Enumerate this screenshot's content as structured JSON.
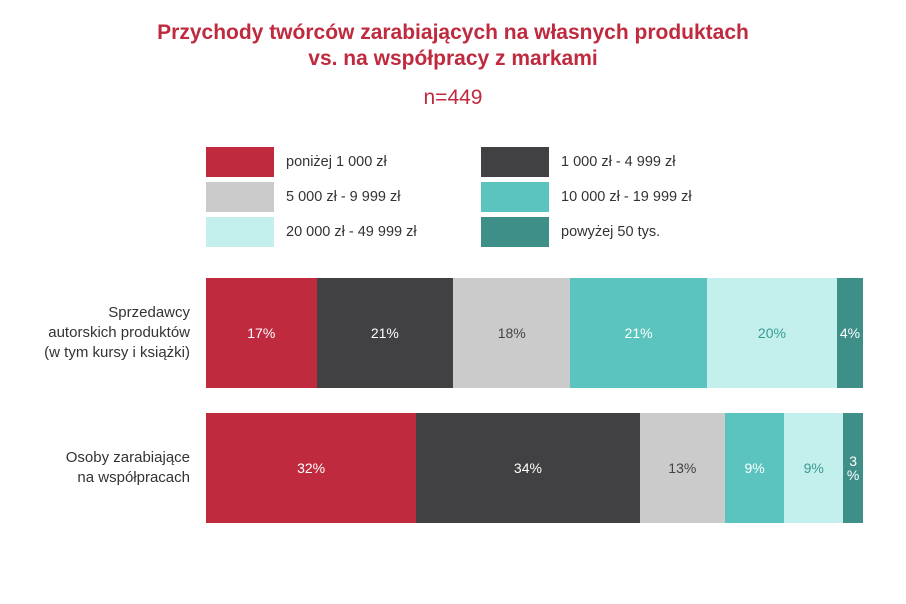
{
  "chart_data": {
    "type": "bar",
    "orientation": "horizontal",
    "stacked": true,
    "percent_stacked": true,
    "title_line1": "Przychody twórców zarabiających na własnych produktach",
    "title_line2": "vs. na współpracy z markami",
    "subtitle": "n=449",
    "legend_position": "top",
    "grid": false,
    "categories": [
      "Sprzedawcy autorskich produktów (w tym kursy i książki)",
      "Osoby zarabiające na współpracach"
    ],
    "category_lines": [
      [
        "Sprzedawcy",
        "autorskich produktów",
        "(w tym kursy i książki)"
      ],
      [
        "Osoby zarabiające",
        "na współpracach"
      ]
    ],
    "series": [
      {
        "name": "poniżej 1 000 zł",
        "color": "#bf2a3e",
        "text_color": "#ffffff",
        "values": [
          17,
          32
        ],
        "labels": [
          "17%",
          "32%"
        ]
      },
      {
        "name": "1 000 zł - 4 999 zł",
        "color": "#414042",
        "text_color": "#ffffff",
        "values": [
          21,
          34
        ],
        "labels": [
          "21%",
          "34%"
        ]
      },
      {
        "name": "5 000 zł - 9 999 zł",
        "color": "#cbcbcb",
        "text_color": "#444444",
        "values": [
          18,
          13
        ],
        "labels": [
          "18%",
          "13%"
        ]
      },
      {
        "name": "10 000 zł - 19 999 zł",
        "color": "#5bc4be",
        "text_color": "#ffffff",
        "values": [
          21,
          9
        ],
        "labels": [
          "21%",
          "9%"
        ]
      },
      {
        "name": "20 000 zł - 49 999 zł",
        "color": "#c3f0ec",
        "text_color": "#3a9a92",
        "values": [
          20,
          9
        ],
        "labels": [
          "20%",
          "9%"
        ]
      },
      {
        "name": "powyżej 50 tys.",
        "color": "#3e8f88",
        "text_color": "#ffffff",
        "values": [
          4,
          3
        ],
        "labels": [
          "4%",
          "3\n%"
        ]
      }
    ]
  }
}
